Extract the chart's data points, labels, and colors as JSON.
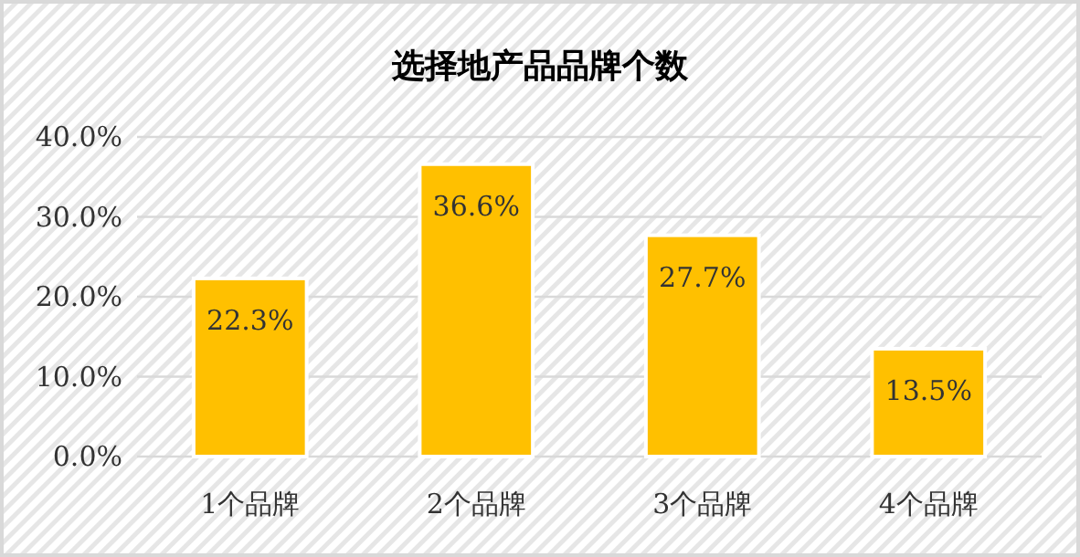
{
  "chart_data": {
    "type": "bar",
    "title": "选择地产品品牌个数",
    "categories": [
      "1个品牌",
      "2个品牌",
      "3个品牌",
      "4个品牌"
    ],
    "values": [
      22.3,
      36.6,
      27.7,
      13.5
    ],
    "color": "#ffc000",
    "value_labels": [
      "22.3%",
      "36.6%",
      "27.7%",
      "13.5%"
    ],
    "ylim": [
      0,
      40
    ],
    "yticks": [
      {
        "value": 0,
        "label": "0.0%"
      },
      {
        "value": 10,
        "label": "10.0%"
      },
      {
        "value": 20,
        "label": "20.0%"
      },
      {
        "value": 30,
        "label": "30.0%"
      },
      {
        "value": 40,
        "label": "40.0%"
      }
    ],
    "grid": "y"
  }
}
